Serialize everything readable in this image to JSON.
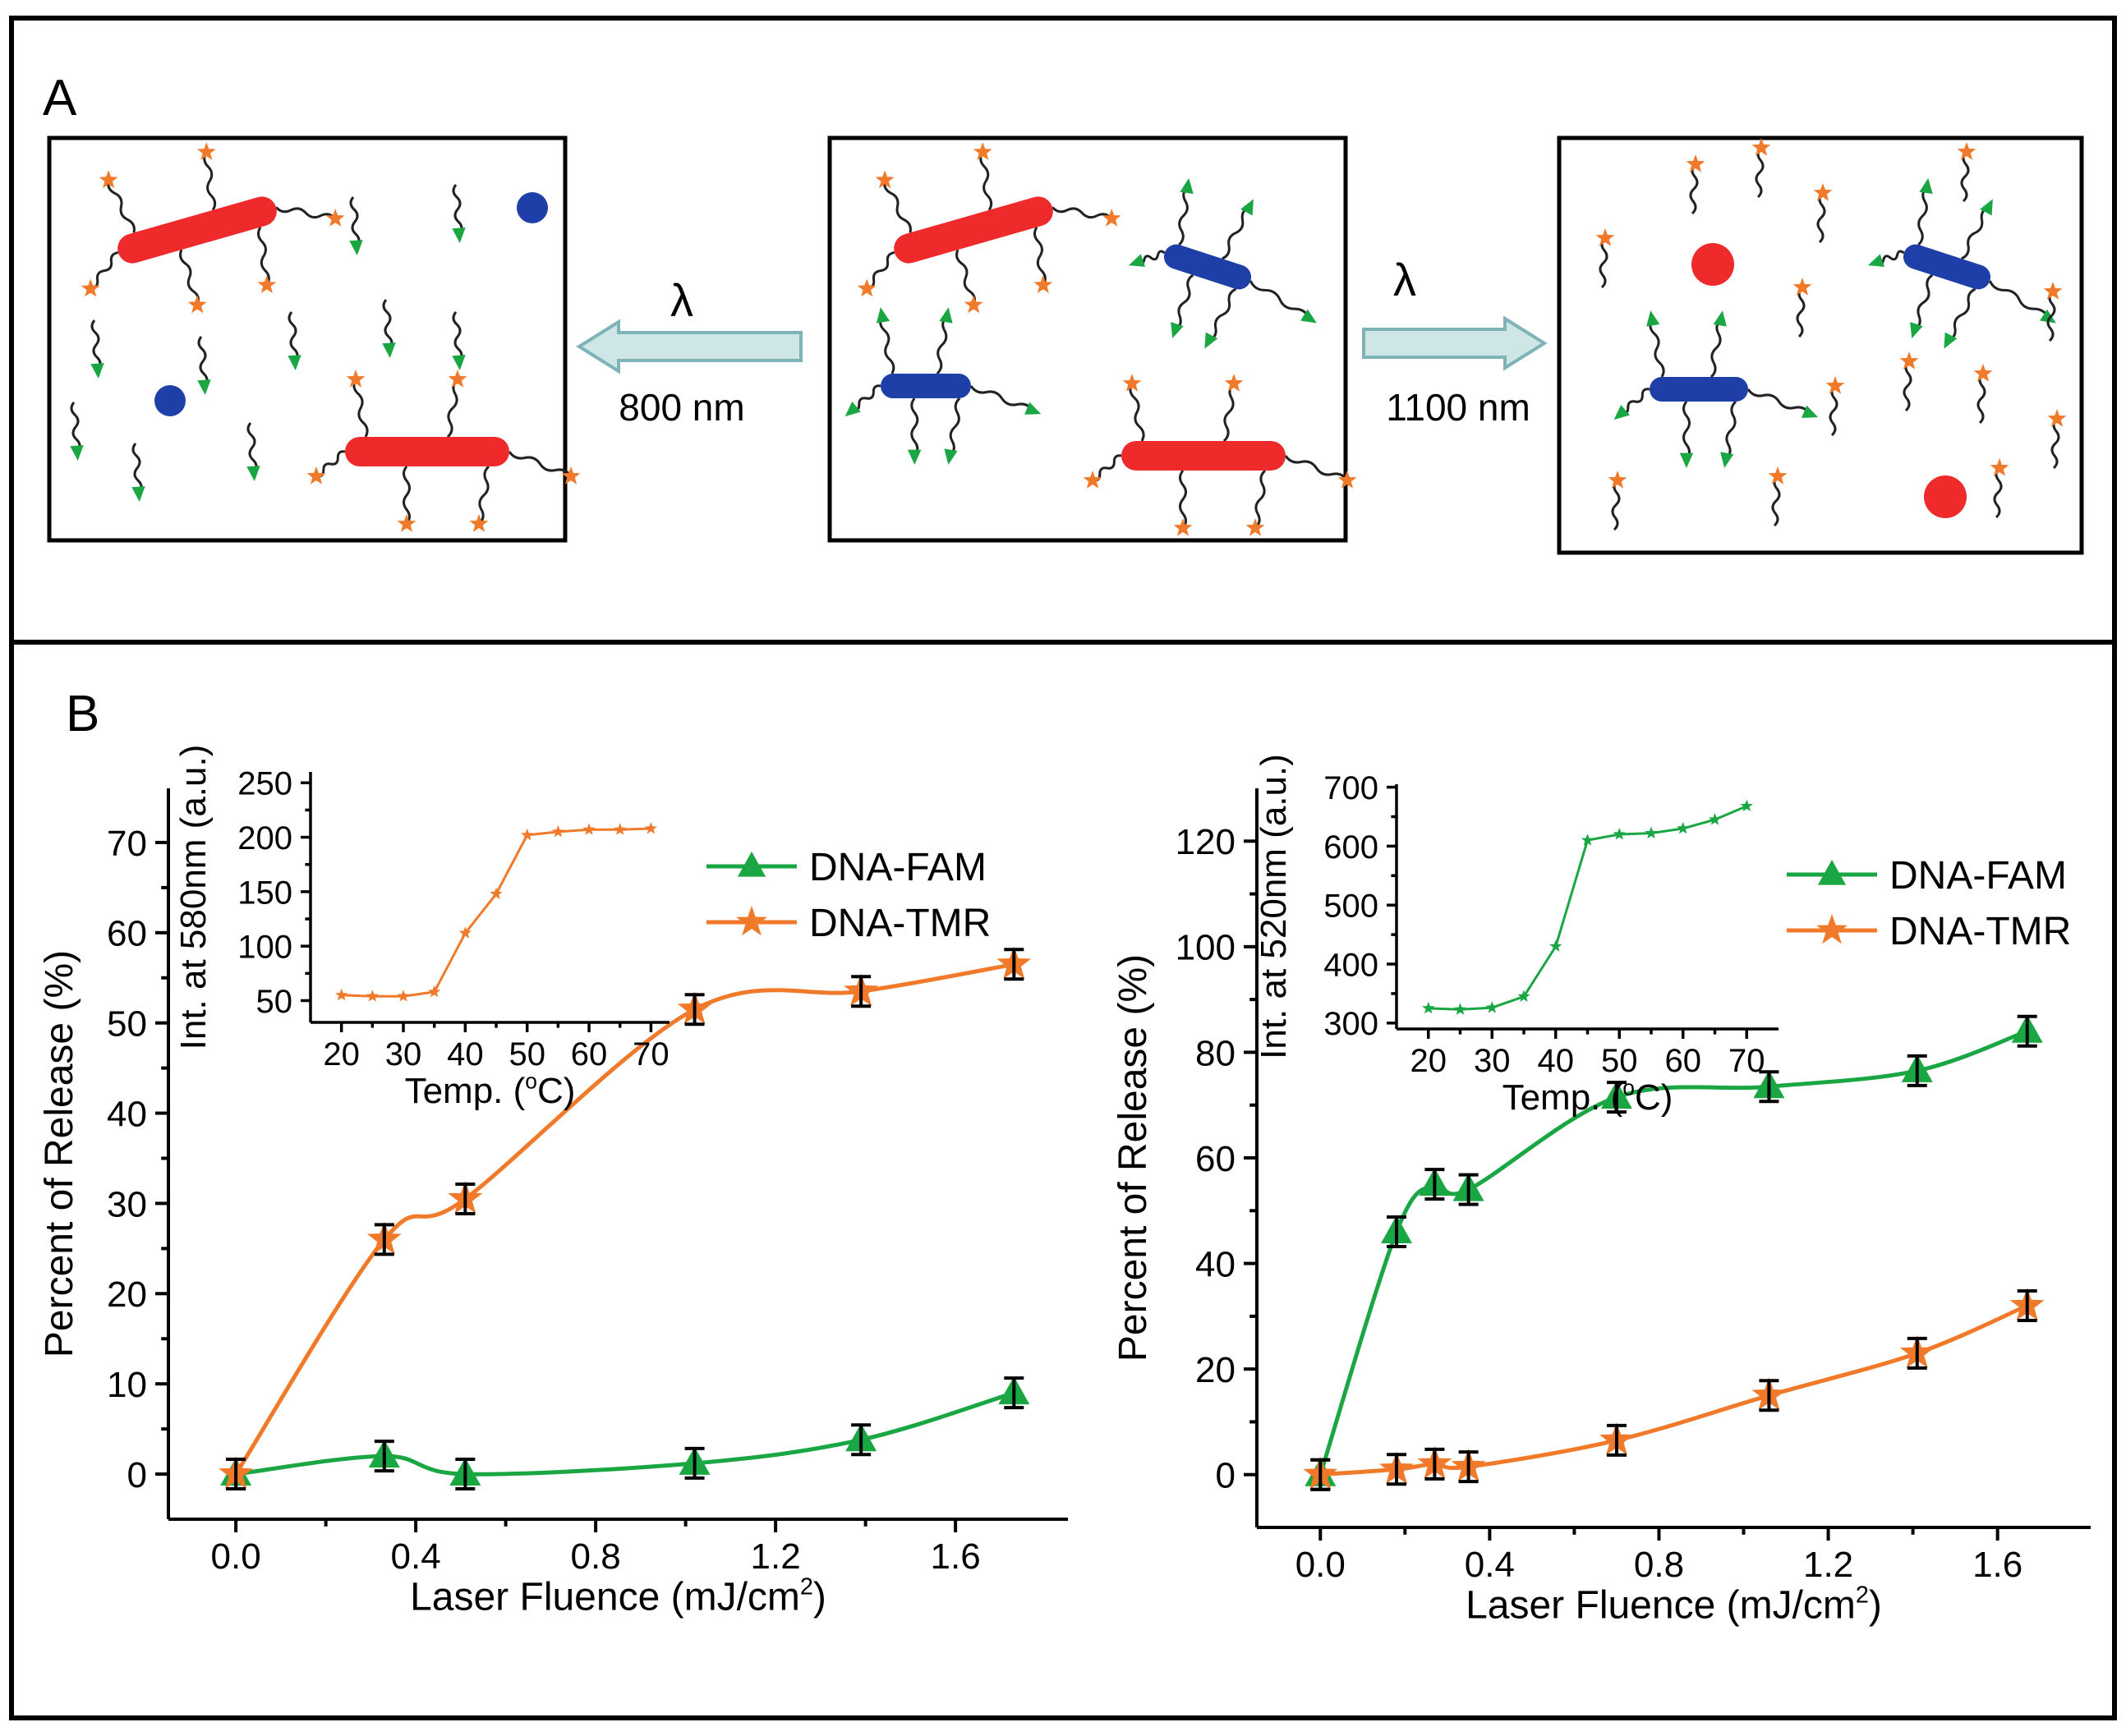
{
  "panel_a": {
    "label": "A",
    "left_arrow": {
      "symbol": "λ",
      "wavelength": "800 nm"
    },
    "right_arrow": {
      "symbol": "λ",
      "wavelength": "1100 nm"
    }
  },
  "panel_b": {
    "label": "B"
  },
  "colors": {
    "fam": "#1aa642",
    "tmr": "#f07a2a",
    "red_rod": "#ee2a2a",
    "blue_rod": "#1f3fa8",
    "arrow_fill": "#cfe6e6",
    "arrow_stroke": "#7fb3b8"
  },
  "chart_data": [
    {
      "type": "line",
      "xlabel": "Laser Fluence (mJ/cm",
      "xlabel_sup": "2",
      "xlabel_end": ")",
      "ylabel": "Percent of Release (%)",
      "xlim": [
        -0.15,
        1.85
      ],
      "ylim": [
        -5,
        76
      ],
      "xticks": [
        0.0,
        0.4,
        0.8,
        1.2,
        1.6
      ],
      "xtick_labels": [
        "0.0",
        "0.4",
        "0.8",
        "1.2",
        "1.6"
      ],
      "yticks": [
        0,
        10,
        20,
        30,
        40,
        50,
        60,
        70
      ],
      "ytick_labels": [
        "0",
        "10",
        "20",
        "30",
        "40",
        "50",
        "60",
        "70"
      ],
      "legend": [
        "DNA-FAM",
        "DNA-TMR"
      ],
      "legend_position": "top-right",
      "series": [
        {
          "name": "DNA-FAM",
          "marker": "triangle",
          "color": "#1aa642",
          "x": [
            0.0,
            0.33,
            0.51,
            1.02,
            1.39,
            1.73
          ],
          "y": [
            0,
            2,
            0,
            1.2,
            3.8,
            9
          ]
        },
        {
          "name": "DNA-TMR",
          "marker": "star",
          "color": "#f07a2a",
          "x": [
            0.0,
            0.33,
            0.51,
            1.02,
            1.39,
            1.73
          ],
          "y": [
            0,
            26,
            30.5,
            51.5,
            53.5,
            56.5
          ]
        }
      ],
      "inset": {
        "type": "line",
        "xlabel": "Temp. (",
        "xlabel_sup": "o",
        "xlabel_end": "C)",
        "ylabel": "Int. at 580nm (a.u.)",
        "xlim": [
          15,
          73
        ],
        "ylim": [
          30,
          260
        ],
        "xticks": [
          20,
          30,
          40,
          50,
          60,
          70
        ],
        "xtick_labels": [
          "20",
          "30",
          "40",
          "50",
          "60",
          "70"
        ],
        "yticks": [
          50,
          100,
          150,
          200,
          250
        ],
        "ytick_labels": [
          "50",
          "100",
          "150",
          "200",
          "250"
        ],
        "series": [
          {
            "color": "#f07a2a",
            "x": [
              20,
              25,
              30,
              35,
              40,
              45,
              50,
              55,
              60,
              65,
              70
            ],
            "y": [
              55,
              54,
              54,
              58,
              112,
              148,
              202,
              205,
              207,
              207,
              208
            ]
          }
        ]
      }
    },
    {
      "type": "line",
      "xlabel": "Laser Fluence (mJ/cm",
      "xlabel_sup": "2",
      "xlabel_end": ")",
      "ylabel": "Percent of Release (%)",
      "xlim": [
        -0.15,
        1.82
      ],
      "ylim": [
        -10,
        130
      ],
      "xticks": [
        0.0,
        0.4,
        0.8,
        1.2,
        1.6
      ],
      "xtick_labels": [
        "0.0",
        "0.4",
        "0.8",
        "1.2",
        "1.6"
      ],
      "yticks": [
        0,
        20,
        40,
        60,
        80,
        100,
        120
      ],
      "ytick_labels": [
        "0",
        "20",
        "40",
        "60",
        "80",
        "100",
        "120"
      ],
      "legend": [
        "DNA-FAM",
        "DNA-TMR"
      ],
      "legend_position": "top-right",
      "series": [
        {
          "name": "DNA-FAM",
          "marker": "triangle",
          "color": "#1aa642",
          "x": [
            0.0,
            0.18,
            0.27,
            0.35,
            0.7,
            1.06,
            1.41,
            1.67
          ],
          "y": [
            0,
            46,
            55,
            54,
            71.5,
            73.5,
            76.5,
            84
          ]
        },
        {
          "name": "DNA-TMR",
          "marker": "star",
          "color": "#f07a2a",
          "x": [
            0.0,
            0.18,
            0.27,
            0.35,
            0.7,
            1.06,
            1.41,
            1.67
          ],
          "y": [
            0,
            1,
            2,
            1.5,
            6.5,
            15,
            23,
            32
          ]
        }
      ],
      "inset": {
        "type": "line",
        "xlabel": "Temp. (",
        "xlabel_sup": "o",
        "xlabel_end": "C)",
        "ylabel": "Int. at 520nm (a.u.)",
        "xlim": [
          15,
          75
        ],
        "ylim": [
          290,
          705
        ],
        "xticks": [
          20,
          30,
          40,
          50,
          60,
          70
        ],
        "xtick_labels": [
          "20",
          "30",
          "40",
          "50",
          "60",
          "70"
        ],
        "yticks": [
          300,
          400,
          500,
          600,
          700
        ],
        "ytick_labels": [
          "300",
          "400",
          "500",
          "600",
          "700"
        ],
        "series": [
          {
            "color": "#1aa642",
            "x": [
              20,
              25,
              30,
              35,
              40,
              45,
              50,
              55,
              60,
              65,
              70
            ],
            "y": [
              325,
              323,
              326,
              345,
              430,
              610,
              620,
              622,
              630,
              645,
              668
            ]
          }
        ]
      }
    }
  ]
}
